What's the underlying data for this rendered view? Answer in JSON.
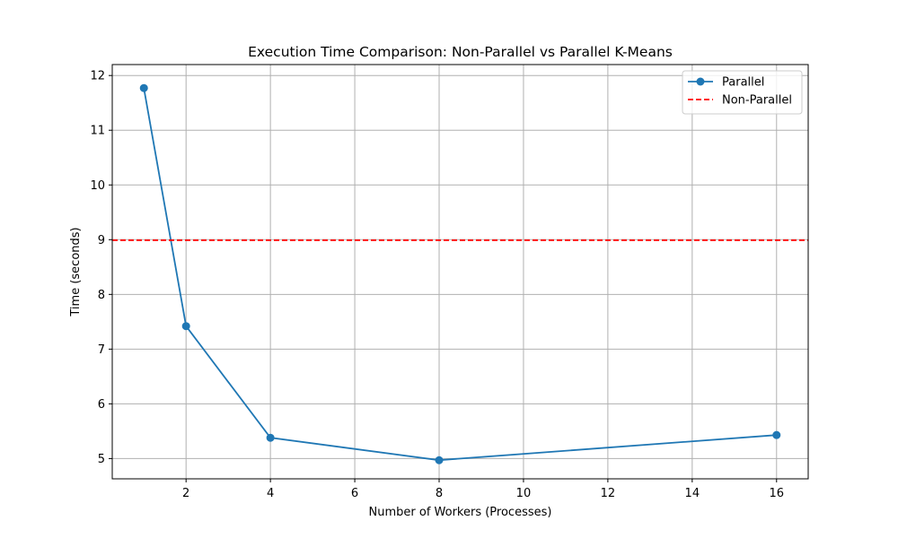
{
  "chart_data": {
    "type": "line",
    "title": "Execution Time Comparison: Non-Parallel vs Parallel K-Means",
    "xlabel": "Number of Workers (Processes)",
    "ylabel": "Time (seconds)",
    "xlim": [
      0.25,
      16.75
    ],
    "ylim": [
      4.63,
      12.2
    ],
    "xticks": [
      2,
      4,
      6,
      8,
      10,
      12,
      14,
      16
    ],
    "yticks": [
      5,
      6,
      7,
      8,
      9,
      10,
      11,
      12
    ],
    "grid": true,
    "legend_position": "top-right",
    "series": [
      {
        "name": "Parallel",
        "kind": "line-marker",
        "color": "#1f77b4",
        "x": [
          1,
          2,
          4,
          8,
          16
        ],
        "values": [
          11.77,
          7.42,
          5.38,
          4.97,
          5.43
        ]
      },
      {
        "name": "Non-Parallel",
        "kind": "hline-dashed",
        "color": "#ff0000",
        "y": 8.99
      }
    ]
  }
}
